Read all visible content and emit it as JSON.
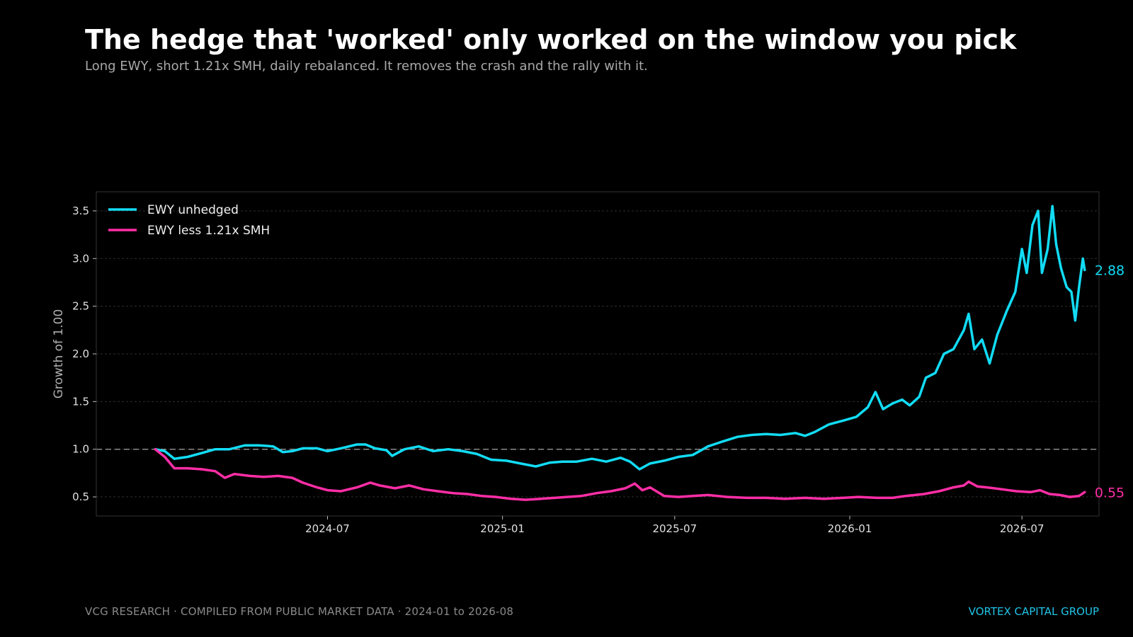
{
  "title": "The hedge that 'worked' only worked on the window you pick",
  "subtitle": "Long EWY, short 1.21x SMH, daily rebalanced. It removes the crash and the rally with it.",
  "footer": {
    "source_left": "VCG RESEARCH",
    "source_mid": "COMPILED FROM PUBLIC MARKET DATA",
    "period": "2024-01 to 2026-08",
    "separator": "·",
    "brand": "VORTEX CAPITAL GROUP"
  },
  "colors": {
    "background": "#000000",
    "ewy": "#12dcf5",
    "hedged": "#ff2ea6",
    "brand": "#1fc4e6",
    "grid": "#2e2e2e",
    "baseline": "#8a8a8a"
  },
  "chart_data": {
    "type": "line",
    "ylabel": "Growth of 1.00",
    "xlabel": "",
    "ylim": [
      0.3,
      3.7
    ],
    "xlim": [
      "2023-11-01",
      "2026-09-20"
    ],
    "yticks": [
      0.5,
      1.0,
      1.5,
      2.0,
      2.5,
      3.0,
      3.5
    ],
    "xticks": [
      {
        "date": "2024-07-01",
        "label": "2024-07"
      },
      {
        "date": "2025-01-01",
        "label": "2025-01"
      },
      {
        "date": "2025-07-01",
        "label": "2025-07"
      },
      {
        "date": "2026-01-01",
        "label": "2026-01"
      },
      {
        "date": "2026-07-01",
        "label": "2026-07"
      }
    ],
    "grid": true,
    "reference_line": 1.0,
    "legend_position": "top-left",
    "series": [
      {
        "name": "EWY unhedged",
        "end_label": "2.88",
        "points": [
          [
            "2024-01-02",
            1.0
          ],
          [
            "2024-01-12",
            0.98
          ],
          [
            "2024-01-22",
            0.9
          ],
          [
            "2024-02-05",
            0.92
          ],
          [
            "2024-02-20",
            0.96
          ],
          [
            "2024-03-05",
            1.0
          ],
          [
            "2024-03-20",
            1.0
          ],
          [
            "2024-04-05",
            1.04
          ],
          [
            "2024-04-20",
            1.04
          ],
          [
            "2024-05-05",
            1.03
          ],
          [
            "2024-05-15",
            0.97
          ],
          [
            "2024-05-25",
            0.98
          ],
          [
            "2024-06-05",
            1.01
          ],
          [
            "2024-06-20",
            1.01
          ],
          [
            "2024-07-01",
            0.98
          ],
          [
            "2024-07-15",
            1.01
          ],
          [
            "2024-08-01",
            1.05
          ],
          [
            "2024-08-10",
            1.05
          ],
          [
            "2024-08-20",
            1.01
          ],
          [
            "2024-09-01",
            0.99
          ],
          [
            "2024-09-07",
            0.93
          ],
          [
            "2024-09-20",
            1.0
          ],
          [
            "2024-10-05",
            1.03
          ],
          [
            "2024-10-20",
            0.98
          ],
          [
            "2024-11-05",
            1.0
          ],
          [
            "2024-11-20",
            0.98
          ],
          [
            "2024-12-05",
            0.95
          ],
          [
            "2024-12-20",
            0.89
          ],
          [
            "2025-01-05",
            0.88
          ],
          [
            "2025-01-20",
            0.85
          ],
          [
            "2025-02-05",
            0.82
          ],
          [
            "2025-02-20",
            0.86
          ],
          [
            "2025-03-05",
            0.87
          ],
          [
            "2025-03-20",
            0.87
          ],
          [
            "2025-04-05",
            0.9
          ],
          [
            "2025-04-20",
            0.87
          ],
          [
            "2025-05-05",
            0.91
          ],
          [
            "2025-05-15",
            0.87
          ],
          [
            "2025-05-25",
            0.79
          ],
          [
            "2025-06-05",
            0.85
          ],
          [
            "2025-06-20",
            0.88
          ],
          [
            "2025-07-05",
            0.92
          ],
          [
            "2025-07-20",
            0.94
          ],
          [
            "2025-08-05",
            1.03
          ],
          [
            "2025-08-20",
            1.08
          ],
          [
            "2025-09-05",
            1.13
          ],
          [
            "2025-09-20",
            1.15
          ],
          [
            "2025-10-05",
            1.16
          ],
          [
            "2025-10-20",
            1.15
          ],
          [
            "2025-11-05",
            1.17
          ],
          [
            "2025-11-15",
            1.14
          ],
          [
            "2025-11-25",
            1.18
          ],
          [
            "2025-12-10",
            1.26
          ],
          [
            "2025-12-25",
            1.3
          ],
          [
            "2026-01-08",
            1.34
          ],
          [
            "2026-01-20",
            1.44
          ],
          [
            "2026-01-28",
            1.6
          ],
          [
            "2026-02-05",
            1.42
          ],
          [
            "2026-02-15",
            1.48
          ],
          [
            "2026-02-25",
            1.52
          ],
          [
            "2026-03-05",
            1.46
          ],
          [
            "2026-03-15",
            1.55
          ],
          [
            "2026-03-22",
            1.75
          ],
          [
            "2026-04-01",
            1.8
          ],
          [
            "2026-04-10",
            2.0
          ],
          [
            "2026-04-20",
            2.05
          ],
          [
            "2026-05-01",
            2.25
          ],
          [
            "2026-05-06",
            2.42
          ],
          [
            "2026-05-12",
            2.05
          ],
          [
            "2026-05-20",
            2.15
          ],
          [
            "2026-05-28",
            1.9
          ],
          [
            "2026-06-05",
            2.2
          ],
          [
            "2026-06-15",
            2.45
          ],
          [
            "2026-06-24",
            2.65
          ],
          [
            "2026-07-01",
            3.1
          ],
          [
            "2026-07-06",
            2.85
          ],
          [
            "2026-07-12",
            3.35
          ],
          [
            "2026-07-18",
            3.5
          ],
          [
            "2026-07-22",
            2.85
          ],
          [
            "2026-07-28",
            3.1
          ],
          [
            "2026-08-02",
            3.55
          ],
          [
            "2026-08-06",
            3.15
          ],
          [
            "2026-08-11",
            2.9
          ],
          [
            "2026-08-17",
            2.7
          ],
          [
            "2026-08-22",
            2.65
          ],
          [
            "2026-08-26",
            2.35
          ],
          [
            "2026-08-30",
            2.7
          ],
          [
            "2026-09-03",
            3.0
          ],
          [
            "2026-09-05",
            2.88
          ]
        ]
      },
      {
        "name": "EWY less 1.21x SMH",
        "end_label": "0.55",
        "points": [
          [
            "2024-01-02",
            1.0
          ],
          [
            "2024-01-12",
            0.92
          ],
          [
            "2024-01-22",
            0.8
          ],
          [
            "2024-02-05",
            0.8
          ],
          [
            "2024-02-20",
            0.79
          ],
          [
            "2024-03-05",
            0.77
          ],
          [
            "2024-03-15",
            0.7
          ],
          [
            "2024-03-25",
            0.74
          ],
          [
            "2024-04-10",
            0.72
          ],
          [
            "2024-04-25",
            0.71
          ],
          [
            "2024-05-10",
            0.72
          ],
          [
            "2024-05-25",
            0.7
          ],
          [
            "2024-06-05",
            0.65
          ],
          [
            "2024-06-20",
            0.6
          ],
          [
            "2024-07-01",
            0.57
          ],
          [
            "2024-07-15",
            0.56
          ],
          [
            "2024-08-01",
            0.6
          ],
          [
            "2024-08-15",
            0.65
          ],
          [
            "2024-08-25",
            0.62
          ],
          [
            "2024-09-10",
            0.59
          ],
          [
            "2024-09-25",
            0.62
          ],
          [
            "2024-10-10",
            0.58
          ],
          [
            "2024-10-25",
            0.56
          ],
          [
            "2024-11-10",
            0.54
          ],
          [
            "2024-11-25",
            0.53
          ],
          [
            "2024-12-10",
            0.51
          ],
          [
            "2024-12-25",
            0.5
          ],
          [
            "2025-01-10",
            0.48
          ],
          [
            "2025-01-25",
            0.47
          ],
          [
            "2025-02-10",
            0.48
          ],
          [
            "2025-02-25",
            0.49
          ],
          [
            "2025-03-10",
            0.5
          ],
          [
            "2025-03-25",
            0.51
          ],
          [
            "2025-04-10",
            0.54
          ],
          [
            "2025-04-25",
            0.56
          ],
          [
            "2025-05-10",
            0.59
          ],
          [
            "2025-05-20",
            0.64
          ],
          [
            "2025-05-28",
            0.57
          ],
          [
            "2025-06-05",
            0.6
          ],
          [
            "2025-06-20",
            0.51
          ],
          [
            "2025-07-05",
            0.5
          ],
          [
            "2025-07-20",
            0.51
          ],
          [
            "2025-08-05",
            0.52
          ],
          [
            "2025-08-25",
            0.5
          ],
          [
            "2025-09-15",
            0.49
          ],
          [
            "2025-10-05",
            0.49
          ],
          [
            "2025-10-25",
            0.48
          ],
          [
            "2025-11-15",
            0.49
          ],
          [
            "2025-12-05",
            0.48
          ],
          [
            "2025-12-25",
            0.49
          ],
          [
            "2026-01-10",
            0.5
          ],
          [
            "2026-01-30",
            0.49
          ],
          [
            "2026-02-15",
            0.49
          ],
          [
            "2026-03-01",
            0.51
          ],
          [
            "2026-03-20",
            0.53
          ],
          [
            "2026-04-05",
            0.56
          ],
          [
            "2026-04-20",
            0.6
          ],
          [
            "2026-05-01",
            0.62
          ],
          [
            "2026-05-06",
            0.66
          ],
          [
            "2026-05-15",
            0.61
          ],
          [
            "2026-05-25",
            0.6
          ],
          [
            "2026-06-10",
            0.58
          ],
          [
            "2026-06-25",
            0.56
          ],
          [
            "2026-07-10",
            0.55
          ],
          [
            "2026-07-20",
            0.57
          ],
          [
            "2026-07-30",
            0.53
          ],
          [
            "2026-08-10",
            0.52
          ],
          [
            "2026-08-20",
            0.5
          ],
          [
            "2026-08-30",
            0.51
          ],
          [
            "2026-09-05",
            0.55
          ]
        ]
      }
    ]
  }
}
